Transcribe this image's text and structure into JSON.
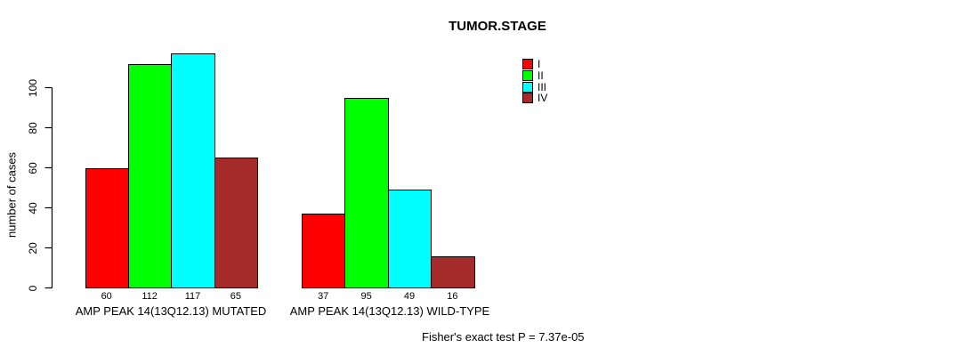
{
  "chart_data": {
    "type": "bar",
    "title": "TUMOR.STAGE",
    "ylabel": "number of cases",
    "xlabel": "",
    "ylim": [
      0,
      120
    ],
    "yticks": [
      0,
      20,
      40,
      60,
      80,
      100
    ],
    "grid": false,
    "background": "#ffffff",
    "bar_border_color": "#000000",
    "legend_position": "top-right",
    "categories": [
      "AMP PEAK 14(13Q12.13) MUTATED",
      "AMP PEAK 14(13Q12.13) WILD-TYPE"
    ],
    "series": [
      {
        "name": "I",
        "color": "#ff0000",
        "values": [
          60,
          37
        ]
      },
      {
        "name": "II",
        "color": "#00ff00",
        "values": [
          112,
          95
        ]
      },
      {
        "name": "III",
        "color": "#00ffff",
        "values": [
          117,
          49
        ]
      },
      {
        "name": "IV",
        "color": "#a52a2a",
        "values": [
          65,
          16
        ]
      }
    ],
    "value_labels_shown": true,
    "annotation": "Fisher's exact test P = 7.37e-05"
  }
}
